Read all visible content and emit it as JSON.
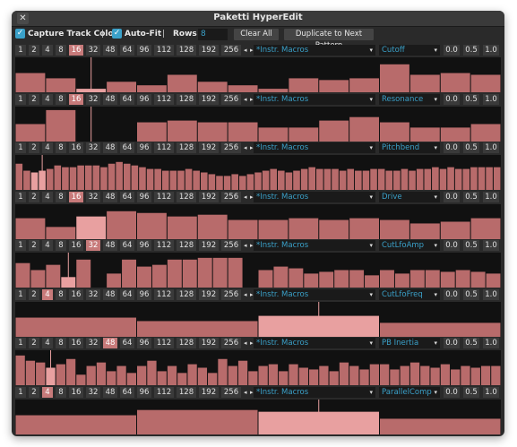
{
  "window": {
    "title": "Paketti HyperEdit"
  },
  "icons": {
    "close": "close-icon",
    "check": "check-icon",
    "dropdown": "chevron-down-icon"
  },
  "toolbar": {
    "capture_label": "Capture Track Color",
    "sep1": "|",
    "autofit_label": "Auto-Fit",
    "sep2": "|",
    "rows_label": "Rows",
    "rows_value": "8",
    "clear_label": "Clear All",
    "duplicate_label": "Duplicate to Next Pattern"
  },
  "step_options": [
    "1",
    "2",
    "4",
    "8",
    "16",
    "32",
    "48",
    "64",
    "96",
    "112",
    "128",
    "192",
    "256"
  ],
  "arrow_left": "◂",
  "arrow_right": "▸",
  "colors": {
    "accent": "#3aa0c8",
    "bar": "#b86b6b",
    "bar_highlight": "#e8a0a0",
    "selected_step": "#c77a7a"
  },
  "panels": [
    {
      "selected_step": "16",
      "steps": "16",
      "source": "*Instr. Macros",
      "param": "Cutoff",
      "vals": [
        "0.0",
        "0.5",
        "1.0"
      ],
      "levels": [
        0.55,
        0.4,
        0.1,
        0.3,
        0.2,
        0.5,
        0.3,
        0.2,
        0.1,
        0.4,
        0.35,
        0.4,
        0.8,
        0.5,
        0.55,
        0.5
      ],
      "highlight": [
        2
      ],
      "cursor": 2
    },
    {
      "selected_step": "16",
      "steps": "16",
      "source": "*Instr. Macros",
      "param": "Resonance",
      "vals": [
        "0.0",
        "0.5",
        "1.0"
      ],
      "levels": [
        0.5,
        0.9,
        0.0,
        0.0,
        0.55,
        0.6,
        0.55,
        0.55,
        0.4,
        0.4,
        0.6,
        0.7,
        0.55,
        0.4,
        0.4,
        0.5
      ],
      "highlight": [
        2
      ],
      "cursor": 2
    },
    {
      "selected_step": "",
      "steps": "63",
      "source": "*Instr. Macros",
      "param": "Pitchbend",
      "vals": [
        "0.0",
        "0.5",
        "1.0"
      ],
      "levels": [
        0.75,
        0.55,
        0.5,
        0.55,
        0.6,
        0.7,
        0.65,
        0.65,
        0.7,
        0.7,
        0.7,
        0.65,
        0.75,
        0.8,
        0.75,
        0.7,
        0.65,
        0.6,
        0.6,
        0.55,
        0.55,
        0.55,
        0.6,
        0.55,
        0.5,
        0.45,
        0.4,
        0.4,
        0.45,
        0.4,
        0.45,
        0.5,
        0.55,
        0.6,
        0.55,
        0.5,
        0.55,
        0.6,
        0.65,
        0.6,
        0.6,
        0.6,
        0.55,
        0.6,
        0.55,
        0.55,
        0.6,
        0.6,
        0.55,
        0.55,
        0.6,
        0.55,
        0.6,
        0.6,
        0.65,
        0.6,
        0.65,
        0.6,
        0.6,
        0.65,
        0.65,
        0.65,
        0.65
      ],
      "highlight": [
        2,
        3
      ],
      "cursor": 3
    },
    {
      "selected_step": "16",
      "steps": "16",
      "source": "*Instr. Macros",
      "param": "Drive",
      "vals": [
        "0.0",
        "0.5",
        "1.0"
      ],
      "levels": [
        0.6,
        0.35,
        0.65,
        0.8,
        0.75,
        0.65,
        0.7,
        0.55,
        0.55,
        0.6,
        0.55,
        0.6,
        0.55,
        0.45,
        0.5,
        0.6
      ],
      "highlight": [
        2
      ],
      "cursor": -1
    },
    {
      "selected_step": "32",
      "steps": "32",
      "source": "*Instr. Macros",
      "param": "CutLfoAmp",
      "vals": [
        "0.0",
        "0.5",
        "1.0"
      ],
      "levels": [
        0.7,
        0.5,
        0.65,
        0.3,
        0.8,
        0.0,
        0.4,
        0.8,
        0.6,
        0.65,
        0.8,
        0.8,
        0.85,
        0.85,
        0.85,
        0.0,
        0.5,
        0.6,
        0.55,
        0.4,
        0.45,
        0.5,
        0.5,
        0.35,
        0.5,
        0.4,
        0.5,
        0.5,
        0.45,
        0.5,
        0.45,
        0.4
      ],
      "highlight": [
        3
      ],
      "cursor": 3
    },
    {
      "selected_step": "4",
      "steps": "04",
      "source": "*Instr. Macros",
      "param": "CutLfoFreq",
      "vals": [
        "0.0",
        "0.5",
        "1.0"
      ],
      "levels": [
        0.55,
        0.45,
        0.6,
        0.4
      ],
      "highlight": [
        2
      ],
      "cursor": 2
    },
    {
      "selected_step": "48",
      "steps": "48",
      "source": "*Instr. Macros",
      "param": "PB Inertia",
      "vals": [
        "0.0",
        "0.5",
        "1.0"
      ],
      "levels": [
        0.85,
        0.7,
        0.65,
        0.5,
        0.6,
        0.75,
        0.3,
        0.55,
        0.65,
        0.4,
        0.55,
        0.35,
        0.55,
        0.7,
        0.4,
        0.55,
        0.35,
        0.6,
        0.5,
        0.35,
        0.75,
        0.55,
        0.7,
        0.4,
        0.55,
        0.6,
        0.4,
        0.6,
        0.5,
        0.45,
        0.55,
        0.4,
        0.65,
        0.55,
        0.45,
        0.6,
        0.6,
        0.45,
        0.55,
        0.65,
        0.55,
        0.5,
        0.6,
        0.45,
        0.55,
        0.5,
        0.55,
        0.55
      ],
      "highlight": [
        3
      ],
      "cursor": 3
    },
    {
      "selected_step": "4",
      "steps": "04",
      "source": "*Instr. Macros",
      "param": "ParallelComp",
      "vals": [
        "0.0",
        "0.5",
        "1.0"
      ],
      "levels": [
        0.55,
        0.7,
        0.65,
        0.45
      ],
      "highlight": [
        2
      ],
      "cursor": 2
    }
  ]
}
